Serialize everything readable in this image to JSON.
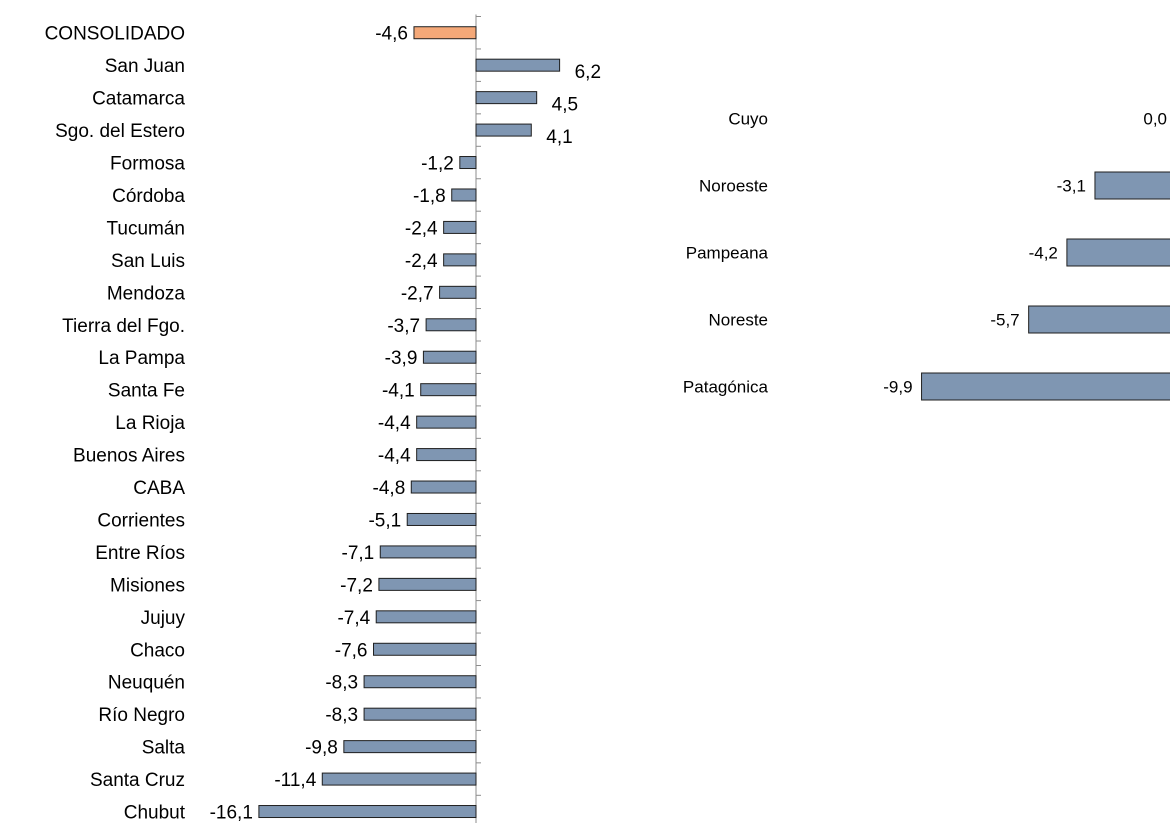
{
  "colors": {
    "bar": "#7f96b2",
    "highlight": "#f4a878",
    "bar_stroke": "#1f1f1f",
    "axis": "#8c8c8c",
    "text": "#000000"
  },
  "chart_data": [
    {
      "type": "bar",
      "orientation": "horizontal",
      "categories": [
        "CONSOLIDADO",
        "San Juan",
        "Catamarca",
        "Sgo. del Estero",
        "Formosa",
        "Córdoba",
        "Tucumán",
        "San Luis",
        "Mendoza",
        "Tierra del Fgo.",
        "La Pampa",
        "Santa Fe",
        "La Rioja",
        "Buenos Aires",
        "CABA",
        "Corrientes",
        "Entre Ríos",
        "Misiones",
        "Jujuy",
        "Chaco",
        "Neuquén",
        "Río Negro",
        "Salta",
        "Santa Cruz",
        "Chubut"
      ],
      "values": [
        -4.6,
        6.2,
        4.5,
        4.1,
        -1.2,
        -1.8,
        -2.4,
        -2.4,
        -2.7,
        -3.7,
        -3.9,
        -4.1,
        -4.4,
        -4.4,
        -4.8,
        -5.1,
        -7.1,
        -7.2,
        -7.4,
        -7.6,
        -8.3,
        -8.3,
        -9.8,
        -11.4,
        -16.1
      ],
      "value_labels": [
        "-4,6",
        "6,2",
        "4,5",
        "4,1",
        "-1,2",
        "-1,8",
        "-2,4",
        "-2,4",
        "-2,7",
        "-3,7",
        "-3,9",
        "-4,1",
        "-4,4",
        "-4,4",
        "-4,8",
        "-5,1",
        "-7,1",
        "-7,2",
        "-7,4",
        "-7,6",
        "-8,3",
        "-8,3",
        "-9,8",
        "-11,4",
        "-16,1"
      ],
      "highlight_index": 0,
      "title": "",
      "xlabel": "",
      "ylabel": "",
      "grid": false,
      "xlim": [
        -16.1,
        10
      ]
    },
    {
      "type": "bar",
      "orientation": "horizontal",
      "categories": [
        "Cuyo",
        "Noroeste",
        "Pampeana",
        "Noreste",
        "Patagónica"
      ],
      "values": [
        0.0,
        -3.1,
        -4.2,
        -5.7,
        -9.9
      ],
      "value_labels": [
        "0,0",
        "-3,1",
        "-4,2",
        "-5,7",
        "-9,9"
      ],
      "title": "",
      "xlabel": "",
      "ylabel": "",
      "grid": false
    }
  ]
}
